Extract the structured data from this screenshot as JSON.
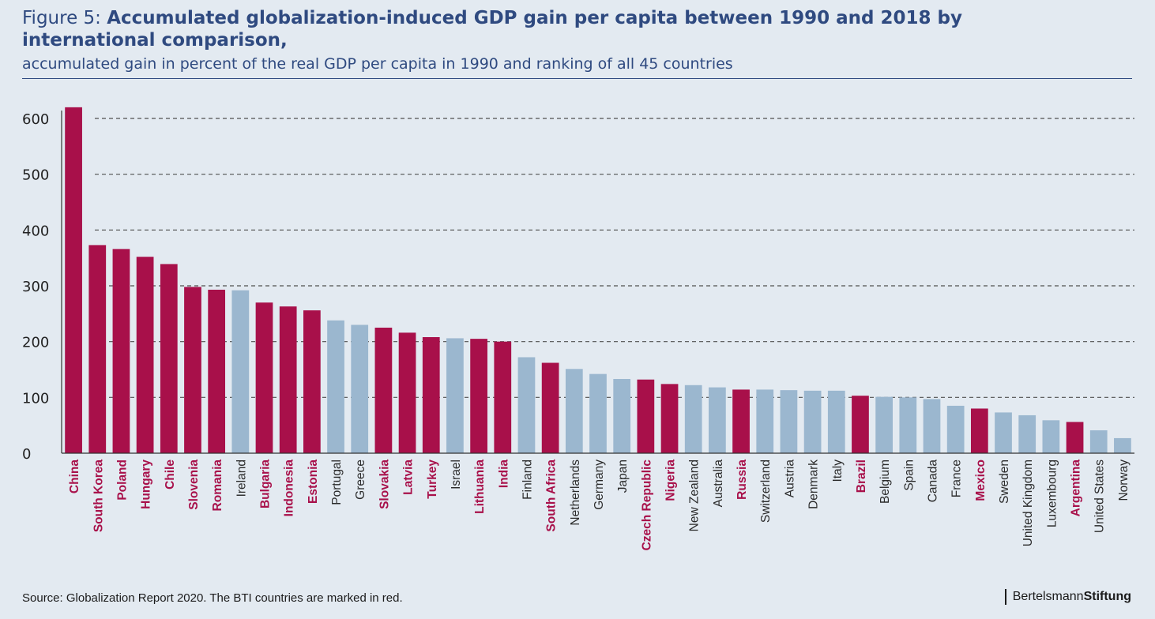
{
  "figure_label": "Figure 5:",
  "title_part1": "Accumulated globalization-induced GDP gain per capita between 1990 and 2018 by",
  "title_part2": "international comparison,",
  "subtitle": "accumulated gain in percent of the real GDP per capita in 1990 and ranking of all 45 countries",
  "source": "Source: Globalization Report 2020. The BTI countries are marked in red.",
  "brand_light": "Bertelsmann",
  "brand_bold": "Stiftung",
  "colors": {
    "bti": "#a8104a",
    "other": "#9bb7cf",
    "title": "#2f4a80"
  },
  "chart_data": {
    "type": "bar",
    "ylim": [
      0,
      600
    ],
    "yticks": [
      0,
      100,
      200,
      300,
      400,
      500,
      600
    ],
    "grid": true,
    "categories": [
      "China",
      "South Korea",
      "Poland",
      "Hungary",
      "Chile",
      "Slovenia",
      "Romania",
      "Ireland",
      "Bulgaria",
      "Indonesia",
      "Estonia",
      "Portugal",
      "Greece",
      "Slovakia",
      "Latvia",
      "Turkey",
      "Israel",
      "Lithuania",
      "India",
      "Finland",
      "South Africa",
      "Netherlands",
      "Germany",
      "Japan",
      "Czech Republic",
      "Nigeria",
      "New Zealand",
      "Australia",
      "Russia",
      "Switzerland",
      "Austria",
      "Denmark",
      "Italy",
      "Brazil",
      "Belgium",
      "Spain",
      "Canada",
      "France",
      "Mexico",
      "Sweden",
      "United Kingdom",
      "Luxembourg",
      "Argentina",
      "United States",
      "Norway"
    ],
    "values": [
      620,
      373,
      366,
      352,
      339,
      298,
      293,
      292,
      270,
      263,
      256,
      238,
      230,
      225,
      216,
      208,
      206,
      205,
      200,
      172,
      162,
      151,
      142,
      133,
      132,
      124,
      122,
      118,
      114,
      114,
      113,
      112,
      112,
      103,
      101,
      100,
      97,
      85,
      80,
      73,
      68,
      59,
      56,
      41,
      27
    ],
    "bti": [
      true,
      true,
      true,
      true,
      true,
      true,
      true,
      false,
      true,
      true,
      true,
      false,
      false,
      true,
      true,
      true,
      false,
      true,
      true,
      false,
      true,
      false,
      false,
      false,
      true,
      true,
      false,
      false,
      true,
      false,
      false,
      false,
      false,
      true,
      false,
      false,
      false,
      false,
      true,
      false,
      false,
      false,
      true,
      false,
      false
    ]
  }
}
